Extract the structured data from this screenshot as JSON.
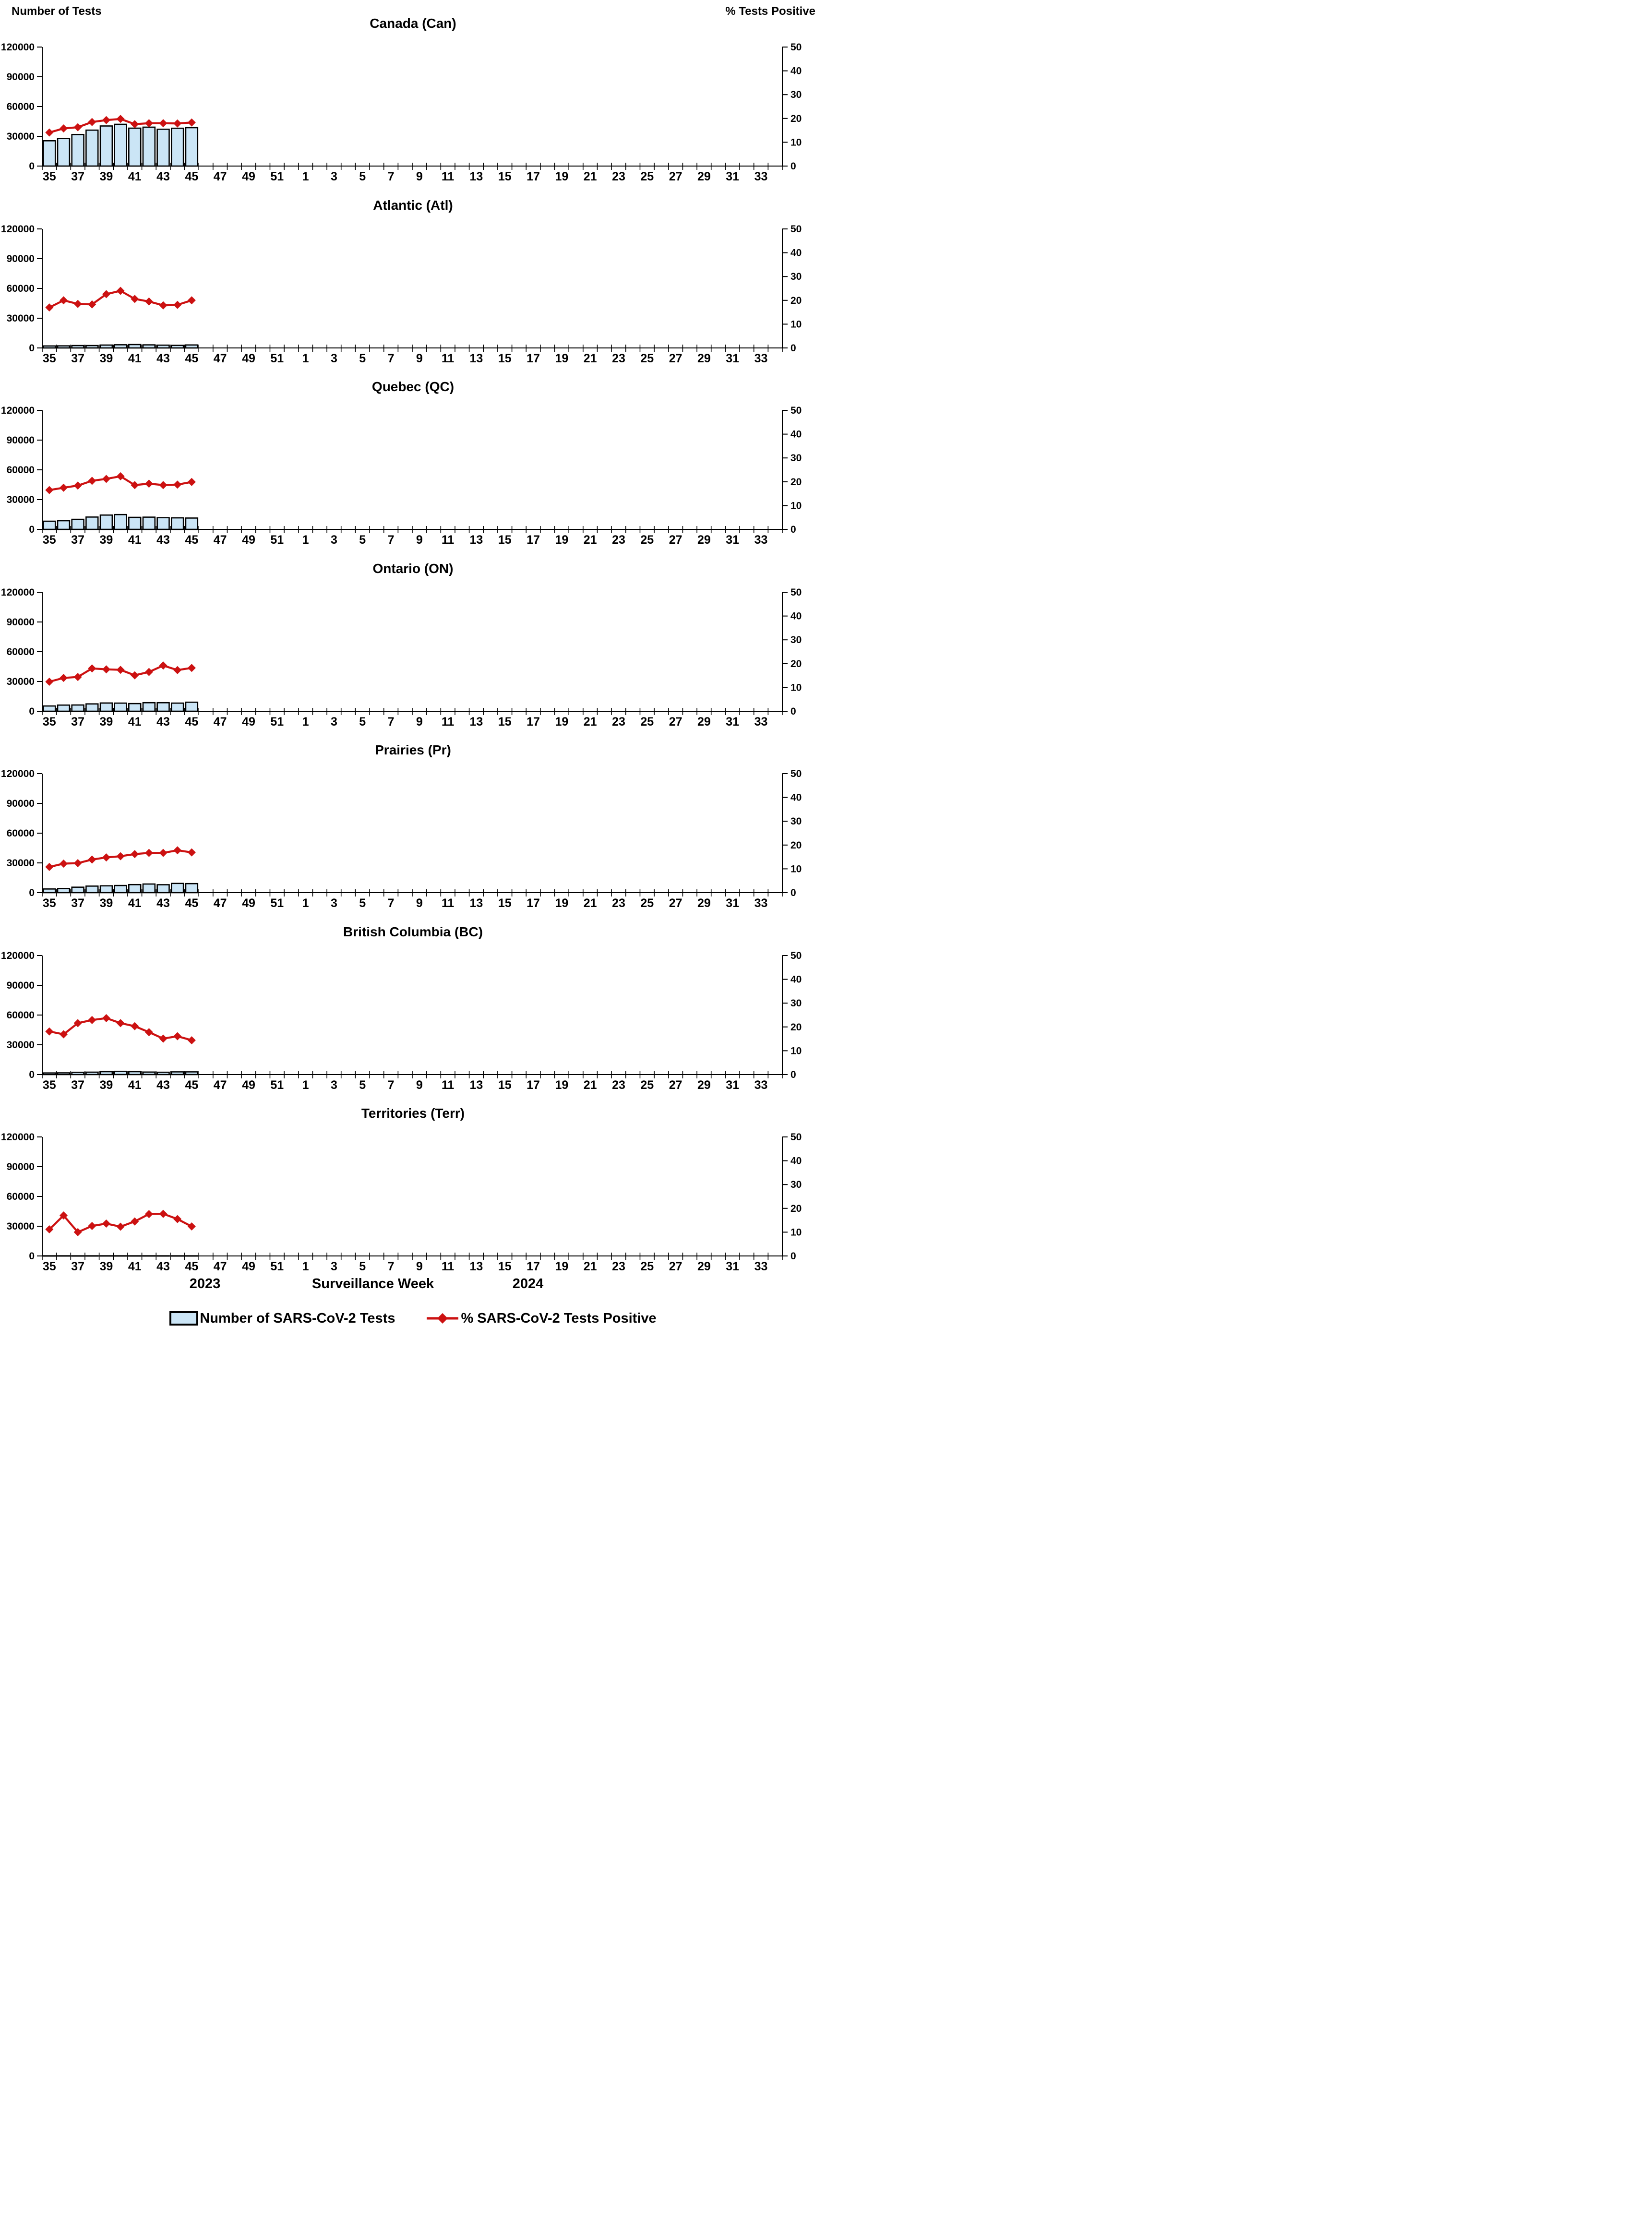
{
  "header": {
    "left_label": "Number of Tests",
    "right_label": "% Tests Positive"
  },
  "footer": {
    "year_left": "2023",
    "axis_label": "Surveillance Week",
    "year_right": "2024"
  },
  "legend": {
    "position": "bottom",
    "items": [
      {
        "label": "Number of SARS-CoV-2 Tests",
        "swatch": "bar"
      },
      {
        "label": "% SARS-CoV-2 Tests Positive",
        "swatch": "line-diamond"
      }
    ]
  },
  "colors": {
    "bar_fill": "#CBE5F6",
    "bar_border": "#000000",
    "line": "#CC1111",
    "axis": "#000000",
    "text": "#000000"
  },
  "axes": {
    "left_label": "Number of Tests",
    "left_ticks": [
      0,
      30000,
      60000,
      90000,
      120000
    ],
    "left_max": 120000,
    "right_label": "% Tests Positive",
    "right_ticks": [
      0,
      10,
      20,
      30,
      40,
      50
    ],
    "right_max": 50,
    "grid": false,
    "x_week_slots": 52,
    "x_start_week_2023": 35,
    "x_end_week_2023": 52,
    "x_start_week_2024": 1,
    "x_end_week_2024": 34,
    "x_labeled_weeks": [
      35,
      37,
      39,
      41,
      43,
      45,
      47,
      49,
      51,
      1,
      3,
      5,
      7,
      9,
      11,
      13,
      15,
      17,
      19,
      21,
      23,
      25,
      27,
      29,
      31,
      33
    ]
  },
  "chart_data": [
    {
      "title": "Canada (Can)",
      "type": "combo_bar_line",
      "weeks": [
        35,
        36,
        37,
        38,
        39,
        40,
        41,
        42,
        43,
        44,
        45
      ],
      "series": [
        {
          "name": "Number of SARS-CoV-2 Tests",
          "type": "bar",
          "axis": "left",
          "values": [
            25500,
            27800,
            31800,
            36200,
            40400,
            42100,
            38200,
            39200,
            37100,
            38100,
            38700
          ]
        },
        {
          "name": "% SARS-CoV-2 Tests Positive",
          "type": "line",
          "axis": "right",
          "values": [
            14.1,
            15.8,
            16.3,
            18.5,
            19.3,
            19.8,
            17.6,
            18.0,
            18.0,
            17.9,
            18.3
          ]
        }
      ]
    },
    {
      "title": "Atlantic (Atl)",
      "type": "combo_bar_line",
      "weeks": [
        35,
        36,
        37,
        38,
        39,
        40,
        41,
        42,
        43,
        44,
        45
      ],
      "series": [
        {
          "name": "Number of SARS-CoV-2 Tests",
          "type": "bar",
          "axis": "left",
          "values": [
            2000,
            2100,
            2400,
            2400,
            2900,
            3200,
            3400,
            3100,
            2800,
            2600,
            3000
          ]
        },
        {
          "name": "% SARS-CoV-2 Tests Positive",
          "type": "line",
          "axis": "right",
          "values": [
            17.0,
            20.0,
            18.5,
            18.3,
            22.6,
            24.0,
            20.6,
            19.5,
            17.9,
            18.1,
            20.0
          ]
        }
      ]
    },
    {
      "title": "Quebec (QC)",
      "type": "combo_bar_line",
      "weeks": [
        35,
        36,
        37,
        38,
        39,
        40,
        41,
        42,
        43,
        44,
        45
      ],
      "series": [
        {
          "name": "Number of SARS-CoV-2 Tests",
          "type": "bar",
          "axis": "left",
          "values": [
            8200,
            8700,
            10100,
            12400,
            14400,
            14900,
            12100,
            12300,
            11800,
            11600,
            11400
          ]
        },
        {
          "name": "% SARS-CoV-2 Tests Positive",
          "type": "line",
          "axis": "right",
          "values": [
            16.5,
            17.5,
            18.4,
            20.4,
            21.2,
            22.3,
            18.6,
            19.2,
            18.6,
            18.8,
            19.9
          ]
        }
      ]
    },
    {
      "title": "Ontario (ON)",
      "type": "combo_bar_line",
      "weeks": [
        35,
        36,
        37,
        38,
        39,
        40,
        41,
        42,
        43,
        44,
        45
      ],
      "series": [
        {
          "name": "Number of SARS-CoV-2 Tests",
          "type": "bar",
          "axis": "left",
          "values": [
            5300,
            6200,
            6300,
            7400,
            8300,
            8200,
            7700,
            8600,
            8600,
            8200,
            9100
          ]
        },
        {
          "name": "% SARS-CoV-2 Tests Positive",
          "type": "line",
          "axis": "right",
          "values": [
            12.4,
            14.0,
            14.4,
            18.0,
            17.6,
            17.4,
            15.1,
            16.5,
            19.2,
            17.3,
            18.2
          ]
        }
      ]
    },
    {
      "title": "Prairies (Pr)",
      "type": "combo_bar_line",
      "weeks": [
        35,
        36,
        37,
        38,
        39,
        40,
        41,
        42,
        43,
        44,
        45
      ],
      "series": [
        {
          "name": "Number of SARS-CoV-2 Tests",
          "type": "bar",
          "axis": "left",
          "values": [
            3700,
            4200,
            5500,
            6600,
            6900,
            7200,
            8100,
            8700,
            8000,
            9300,
            9100
          ]
        },
        {
          "name": "% SARS-CoV-2 Tests Positive",
          "type": "line",
          "axis": "right",
          "values": [
            10.8,
            12.2,
            12.4,
            13.9,
            14.8,
            15.3,
            16.2,
            16.7,
            16.7,
            17.8,
            16.9
          ]
        }
      ]
    },
    {
      "title": "British Columbia (BC)",
      "type": "combo_bar_line",
      "weeks": [
        35,
        36,
        37,
        38,
        39,
        40,
        41,
        42,
        43,
        44,
        45
      ],
      "series": [
        {
          "name": "Number of SARS-CoV-2 Tests",
          "type": "bar",
          "axis": "left",
          "values": [
            1600,
            1700,
            2200,
            2400,
            2900,
            3200,
            2900,
            2500,
            2300,
            2700,
            2700
          ]
        },
        {
          "name": "% SARS-CoV-2 Tests Positive",
          "type": "line",
          "axis": "right",
          "values": [
            18.1,
            16.9,
            21.6,
            22.9,
            23.7,
            21.6,
            20.3,
            17.8,
            15.1,
            16.1,
            14.4
          ]
        }
      ]
    },
    {
      "title": "Territories (Terr)",
      "type": "combo_bar_line",
      "weeks": [
        35,
        36,
        37,
        38,
        39,
        40,
        41,
        42,
        43,
        44,
        45
      ],
      "series": [
        {
          "name": "Number of SARS-CoV-2 Tests",
          "type": "bar",
          "axis": "left",
          "values": [
            150,
            170,
            140,
            160,
            180,
            170,
            160,
            170,
            160,
            150,
            160
          ]
        },
        {
          "name": "% SARS-CoV-2 Tests Positive",
          "type": "line",
          "axis": "right",
          "values": [
            11.2,
            17.0,
            10.0,
            12.6,
            13.6,
            12.3,
            14.5,
            17.6,
            17.7,
            15.5,
            12.4
          ]
        }
      ]
    }
  ]
}
